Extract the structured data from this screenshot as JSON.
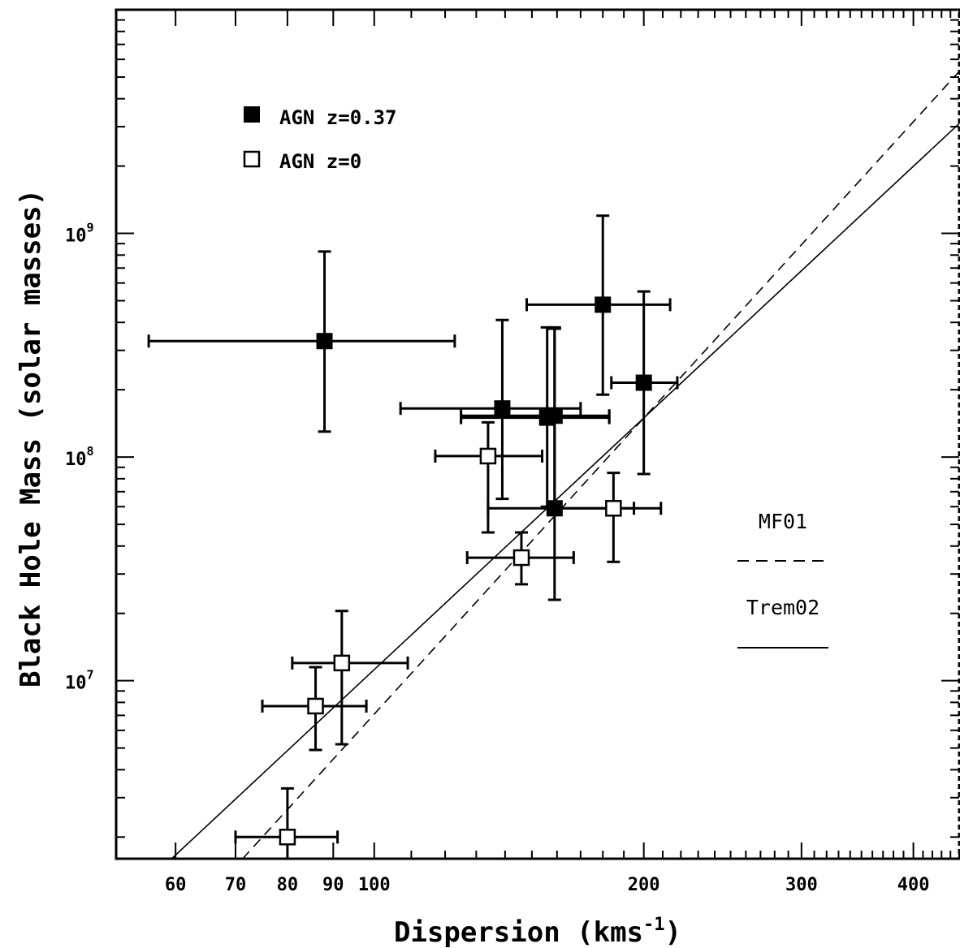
{
  "chart_data": {
    "type": "scatter",
    "xlabel": "Dispersion (kms",
    "xlabel_sup": "-1",
    "xlabel_end": ")",
    "ylabel": "Black Hole Mass (solar masses)",
    "x_scale": "log",
    "y_scale": "log",
    "xlim": [
      51.5,
      450
    ],
    "ylim": [
      1600000,
      10000000000
    ],
    "x_ticks": [
      {
        "value": 60,
        "label": "60"
      },
      {
        "value": 70,
        "label": "70"
      },
      {
        "value": 80,
        "label": "80"
      },
      {
        "value": 90,
        "label": "90"
      },
      {
        "value": 100,
        "label": "100"
      },
      {
        "value": 200,
        "label": "200"
      },
      {
        "value": 300,
        "label": "300"
      },
      {
        "value": 400,
        "label": "400"
      }
    ],
    "y_ticks": [
      {
        "value": 10000000,
        "base": "10",
        "exp": "7"
      },
      {
        "value": 100000000,
        "base": "10",
        "exp": "8"
      },
      {
        "value": 1000000000,
        "base": "10",
        "exp": "9"
      }
    ],
    "series": [
      {
        "name": "AGN z=0.37",
        "marker": "filled-square",
        "points": [
          {
            "x": 88,
            "y": 330000000,
            "xerr": [
              56,
              123
            ],
            "yerr": [
              130000000,
              830000000
            ]
          },
          {
            "x": 139,
            "y": 165000000,
            "xerr": [
              107,
              170
            ],
            "yerr": [
              65000000,
              410000000
            ]
          },
          {
            "x": 156,
            "y": 150000000,
            "xerr": [
              125,
              183
            ],
            "yerr": [
              60000000,
              380000000
            ]
          },
          {
            "x": 159,
            "y": 153000000,
            "xerr": [
              125,
              183
            ],
            "yerr": [
              60000000,
              380000000
            ]
          },
          {
            "x": 159,
            "y": 59000000,
            "xerr": [
              134,
              195
            ],
            "yerr": [
              23000000,
              375000000
            ]
          },
          {
            "x": 180,
            "y": 480000000,
            "xerr": [
              148,
              214
            ],
            "yerr": [
              190000000,
              1200000000
            ]
          },
          {
            "x": 200,
            "y": 215000000,
            "xerr": [
              184,
              218
            ],
            "yerr": [
              84000000,
              550000000
            ]
          }
        ]
      },
      {
        "name": "AGN z=0",
        "marker": "open-square",
        "points": [
          {
            "x": 80,
            "y": 2000000,
            "xerr": [
              70,
              91
            ],
            "yerr": [
              1600000,
              3300000
            ]
          },
          {
            "x": 86,
            "y": 7700000,
            "xerr": [
              75,
              98
            ],
            "yerr": [
              4900000,
              11500000
            ]
          },
          {
            "x": 92,
            "y": 12000000,
            "xerr": [
              81,
              109
            ],
            "yerr": [
              5200000,
              20500000
            ]
          },
          {
            "x": 134,
            "y": 101000000,
            "xerr": [
              117,
              154
            ],
            "yerr": [
              46000000,
              143000000
            ]
          },
          {
            "x": 146,
            "y": 35500000,
            "xerr": [
              127,
              167
            ],
            "yerr": [
              27000000,
              46000000
            ]
          },
          {
            "x": 185,
            "y": 59000000,
            "xerr": [
              161,
              209
            ],
            "yerr": [
              34000000,
              85000000
            ]
          }
        ]
      }
    ],
    "fit_lines": [
      {
        "name": "MF01",
        "style": "dashed",
        "x": [
          71.3,
          450
        ],
        "y": [
          1600000,
          5300000000
        ]
      },
      {
        "name": "Trem02",
        "style": "solid",
        "x": [
          59.4,
          450
        ],
        "y": [
          1600000,
          3100000000
        ]
      }
    ],
    "legend_position": "top-left"
  }
}
